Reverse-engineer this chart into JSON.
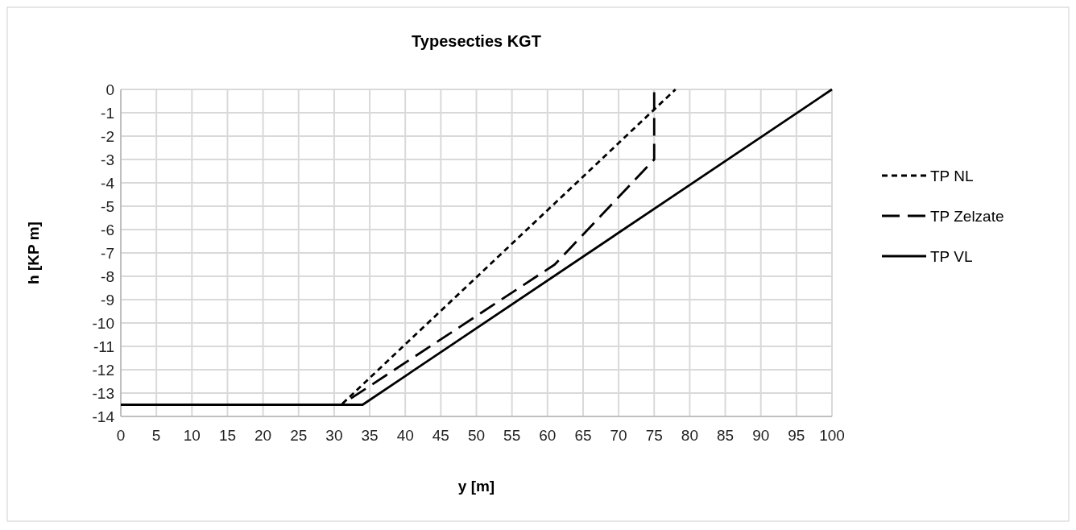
{
  "chart_data": {
    "type": "line",
    "title": "Typesecties KGT",
    "xlabel": "y [m]",
    "ylabel": "h [KP m]",
    "xlim": [
      0,
      100
    ],
    "xticks": [
      0,
      5,
      10,
      15,
      20,
      25,
      30,
      35,
      40,
      45,
      50,
      55,
      60,
      65,
      70,
      75,
      80,
      85,
      90,
      95,
      100
    ],
    "ylim": [
      -14,
      0
    ],
    "yticks": [
      -14,
      -13,
      -12,
      -11,
      -10,
      -9,
      -8,
      -7,
      -6,
      -5,
      -4,
      -3,
      -2,
      -1,
      0
    ],
    "grid": true,
    "legend": "right",
    "marker": "none",
    "series": [
      {
        "name": "TP NL",
        "color": "#000000",
        "line_style": "dotted",
        "x": [
          0,
          31,
          78
        ],
        "values": [
          -13.5,
          -13.5,
          0
        ]
      },
      {
        "name": "TP Zelzate",
        "color": "#000000",
        "line_style": "dashed",
        "x": [
          0,
          31,
          61,
          75,
          75
        ],
        "values": [
          -13.5,
          -13.5,
          -7.5,
          -3,
          0
        ]
      },
      {
        "name": "TP VL",
        "color": "#000000",
        "line_style": "solid",
        "x": [
          0,
          34,
          100
        ],
        "values": [
          -13.5,
          -13.5,
          0
        ]
      }
    ]
  }
}
